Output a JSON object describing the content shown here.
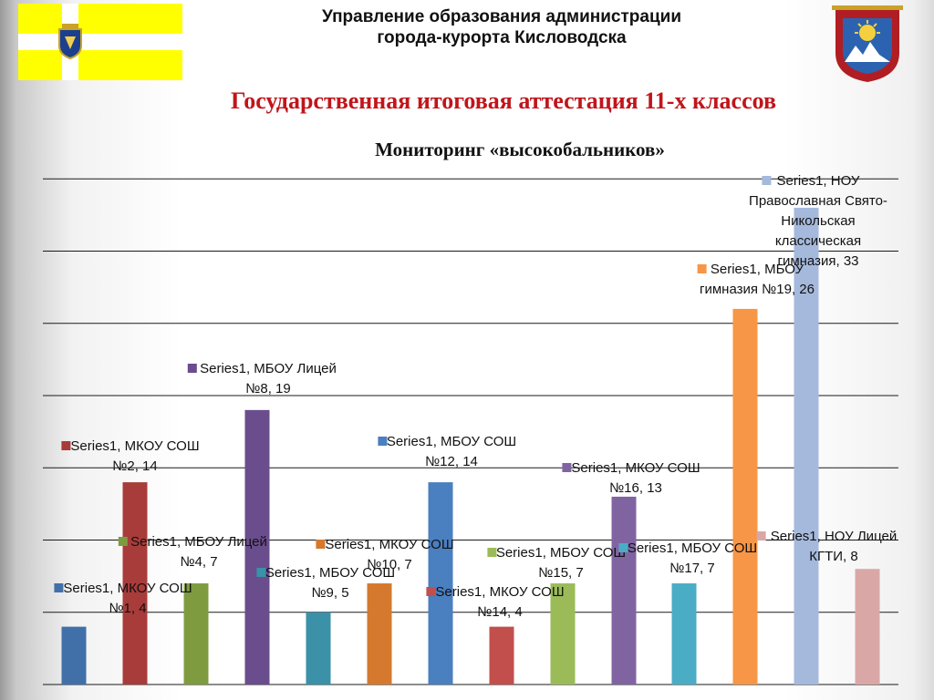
{
  "header": {
    "org_line1": "Управление образования администрации",
    "org_line2": "города-курорта Кисловодска"
  },
  "flag": {
    "icon": "stavropol-flag-icon",
    "colors": [
      "#ffff00",
      "#ffffff"
    ]
  },
  "crest": {
    "icon": "kislovodsk-coat-of-arms-icon"
  },
  "page": {
    "title": "Государственная итоговая аттестация 11-х классов",
    "title_color": "#c0151b"
  },
  "chart_data": {
    "type": "bar",
    "title": "Мониторинг «высокобальников»",
    "xlabel": "",
    "ylabel": "",
    "ylim": [
      0,
      35
    ],
    "grid": true,
    "series": [
      {
        "name": "Series1",
        "categories": [
          "МКОУ СОШ №1",
          "МКОУ СОШ №2",
          "МБОУ Лицей №4",
          "МБОУ Лицей №8",
          "МБОУ СОШ №9",
          "МКОУ СОШ №10",
          "МБОУ СОШ №12",
          "МКОУ СОШ №14",
          "МБОУ СОШ №15",
          "МКОУ СОШ №16",
          "МБОУ СОШ №17",
          "МБОУ гимназия №19",
          "НОУ Православная Свято-Никольская классическая гимназия",
          "НОУ Лицей КГТИ"
        ],
        "values": [
          4,
          14,
          7,
          19,
          5,
          7,
          14,
          4,
          7,
          13,
          7,
          26,
          33,
          8
        ],
        "colors": [
          "#4170a8",
          "#a83c3a",
          "#7f9b40",
          "#6a4d8c",
          "#3a91a8",
          "#d4792e",
          "#4a7fc0",
          "#c24f4c",
          "#9bbb59",
          "#8064a2",
          "#4bacc6",
          "#f79646",
          "#a5b9dc",
          "#d9a8a6"
        ],
        "labels": [
          [
            "Series1, МКОУ СОШ",
            "№1, 4"
          ],
          [
            "Series1, МКОУ СОШ",
            "№2, 14"
          ],
          [
            "Series1, МБОУ Лицей",
            "№4, 7"
          ],
          [
            "Series1, МБОУ Лицей",
            "№8, 19"
          ],
          [
            "Series1, МБОУ СОШ",
            "№9, 5"
          ],
          [
            "Series1, МКОУ СОШ",
            "№10, 7"
          ],
          [
            "Series1, МБОУ СОШ",
            "№12, 14"
          ],
          [
            "Series1, МКОУ СОШ",
            "№14, 4"
          ],
          [
            "Series1, МБОУ СОШ",
            "№15, 7"
          ],
          [
            "Series1, МКОУ СОШ",
            "№16, 13"
          ],
          [
            "Series1, МБОУ СОШ",
            "№17, 7"
          ],
          [
            "Series1, МБОУ",
            "гимназия №19, 26"
          ],
          [
            "Series1, НОУ",
            "Православная Свято-",
            "Никольская",
            "классическая",
            "гимназия, 33"
          ],
          [
            "Series1, НОУ Лицей",
            "КГТИ, 8"
          ]
        ]
      }
    ]
  }
}
